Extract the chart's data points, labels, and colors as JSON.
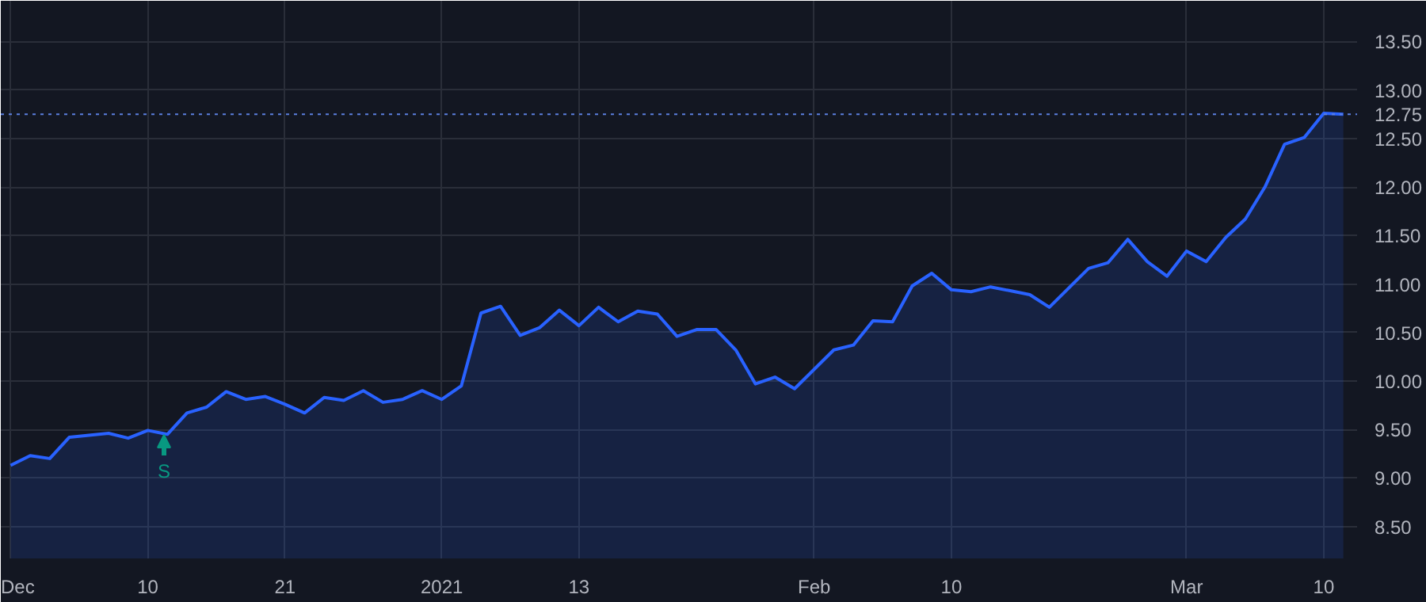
{
  "chart_data": {
    "type": "area",
    "categories": [
      "Dec",
      null,
      null,
      null,
      null,
      null,
      null,
      "10",
      null,
      null,
      null,
      null,
      null,
      null,
      "21",
      null,
      null,
      null,
      null,
      null,
      null,
      null,
      "2021",
      null,
      null,
      null,
      null,
      null,
      null,
      "13",
      null,
      null,
      null,
      null,
      null,
      null,
      null,
      null,
      null,
      null,
      null,
      "Feb",
      null,
      null,
      null,
      null,
      null,
      null,
      "10",
      null,
      null,
      null,
      null,
      null,
      null,
      null,
      null,
      null,
      null,
      null,
      "Mar",
      null,
      null,
      null,
      null,
      null,
      null,
      "10",
      null
    ],
    "series": [
      {
        "color": "#2962ff",
        "values": [
          9.13,
          9.23,
          9.2,
          9.42,
          9.44,
          9.46,
          9.41,
          9.49,
          9.45,
          9.67,
          9.73,
          9.89,
          9.81,
          9.84,
          9.76,
          9.67,
          9.83,
          9.8,
          9.9,
          9.78,
          9.81,
          9.9,
          9.81,
          9.95,
          10.7,
          10.77,
          10.47,
          10.55,
          10.73,
          10.57,
          10.76,
          10.61,
          10.72,
          10.69,
          10.46,
          10.53,
          10.53,
          10.32,
          9.97,
          10.04,
          9.92,
          10.12,
          10.32,
          10.37,
          10.62,
          10.61,
          10.98,
          11.11,
          10.94,
          10.92,
          10.97,
          10.93,
          10.89,
          10.76,
          10.96,
          11.16,
          11.22,
          11.46,
          11.23,
          11.08,
          11.34,
          11.23,
          11.48,
          11.67,
          12.0,
          12.44,
          12.51,
          12.76,
          12.75
        ]
      }
    ],
    "ylim": [
      8.17,
      13.92
    ],
    "yticks": [
      {
        "value": 8.5,
        "label": "8.50"
      },
      {
        "value": 9,
        "label": "9.00"
      },
      {
        "value": 9.5,
        "label": "9.50"
      },
      {
        "value": 10,
        "label": "10.00"
      },
      {
        "value": 10.5,
        "label": "10.50"
      },
      {
        "value": 11,
        "label": "11.00"
      },
      {
        "value": 11.5,
        "label": "11.50"
      },
      {
        "value": 12,
        "label": "12.00"
      },
      {
        "value": 12.5,
        "label": "12.50"
      },
      {
        "value": 13,
        "label": "13.00"
      },
      {
        "value": 13.5,
        "label": "13.50"
      }
    ],
    "ref_lines": [
      {
        "axis": "y",
        "value": 12.75,
        "label": "12.75",
        "color": "#5b7fe0",
        "line_style": "dotted"
      }
    ],
    "annotations": [
      "S"
    ],
    "grid": true
  }
}
